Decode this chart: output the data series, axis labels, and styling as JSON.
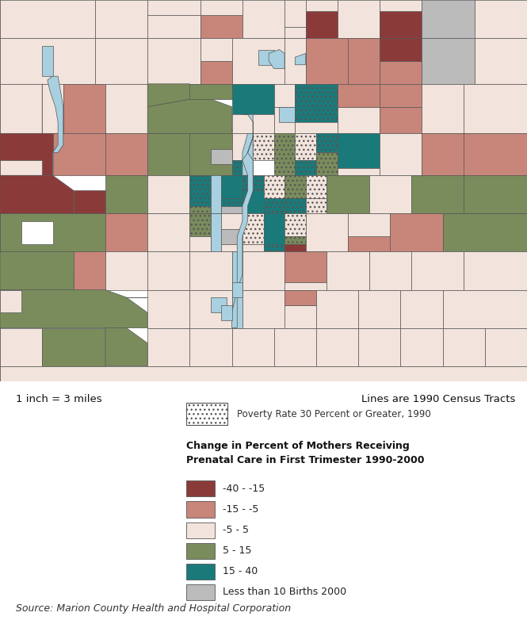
{
  "scale_text": "1 inch = 3 miles",
  "census_text": "Lines are 1990 Census Tracts",
  "source_text": "Source: Marion County Health and Hospital Corporation",
  "poverty_label": "Poverty Rate 30 Percent or Greater, 1990",
  "legend_title": "Change in Percent of Mothers Receiving\nPrenatal Care in First Trimester 1990-2000",
  "legend_entries": [
    {
      "label": "-40 - -15",
      "color": "#8B3A3A"
    },
    {
      "label": "-15 - -5",
      "color": "#C8857A"
    },
    {
      "label": "-5 - 5",
      "color": "#F2E4DC"
    },
    {
      "label": "5 - 15",
      "color": "#7A8C5C"
    },
    {
      "label": "15 - 40",
      "color": "#1A7A7A"
    },
    {
      "label": "Less than 10 Births 2000",
      "color": "#BBBBBB"
    }
  ],
  "bg_color": "#FFFFFF",
  "water_color": "#A8D0E0",
  "border_color": "#555555",
  "colors": {
    "dark_red": "#8B3A3A",
    "light_red": "#C8857A",
    "cream": "#F2E4DC",
    "olive": "#7A8C5C",
    "teal": "#1A7A7A",
    "gray": "#BBBBBB",
    "white": "#FFFFFF"
  }
}
